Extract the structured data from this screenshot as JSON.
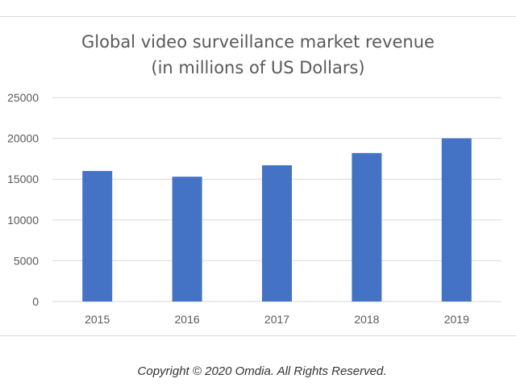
{
  "chart_data": {
    "type": "bar",
    "title_line1": "Global video surveillance market revenue",
    "title_line2": "(in millions of US Dollars)",
    "categories": [
      "2015",
      "2016",
      "2017",
      "2018",
      "2019"
    ],
    "values": [
      16000,
      15300,
      16700,
      18200,
      20000
    ],
    "ylim": [
      0,
      25000
    ],
    "yticks": [
      0,
      5000,
      10000,
      15000,
      20000,
      25000
    ],
    "grid": true,
    "legend": false,
    "bar_color": "#4472c4",
    "grid_color": "#d9d9d9",
    "tick_label_color": "#595959"
  },
  "footer": {
    "copyright": "Copyright © 2020 Omdia. All Rights Reserved."
  }
}
